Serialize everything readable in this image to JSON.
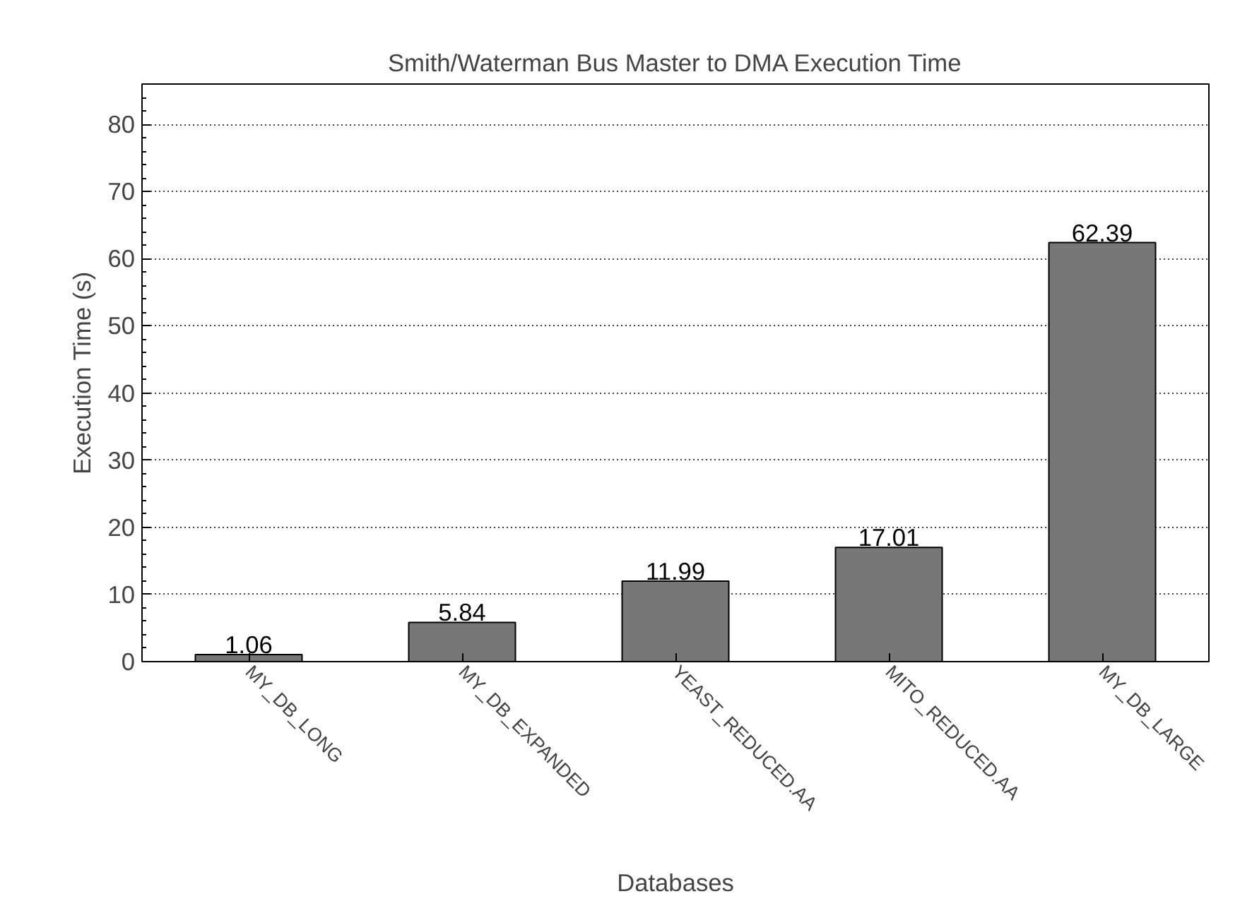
{
  "chart_data": {
    "type": "bar",
    "title": "Smith/Waterman Bus Master to DMA Execution Time",
    "xlabel": "Databases",
    "ylabel": "Execution Time (s)",
    "categories": [
      "MY_DB_LONG",
      "MY_DB_EXPANDED",
      "YEAST_REDUCED.AA",
      "MITO_REDUCED.AA",
      "MY_DB_LARGE"
    ],
    "values": [
      1.06,
      5.84,
      11.99,
      17.01,
      62.39
    ],
    "color": "#777777",
    "ylim": [
      0,
      86
    ],
    "yticks": [
      0,
      10,
      20,
      30,
      40,
      50,
      60,
      70,
      80
    ],
    "grid": "y",
    "data_labels": true
  }
}
